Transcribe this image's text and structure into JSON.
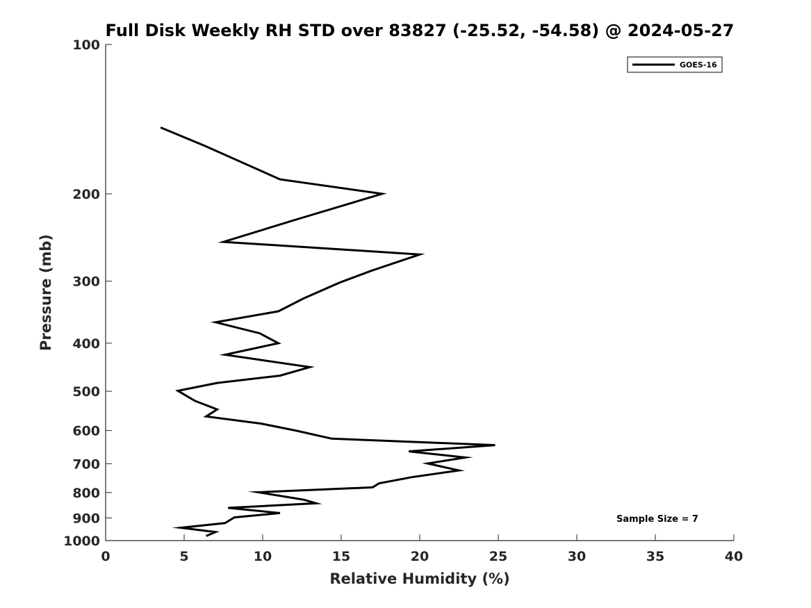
{
  "chart_data": {
    "type": "line",
    "title": "Full Disk Weekly RH STD over 83827 (-25.52, -54.58) @ 2024-05-27",
    "xlabel": "Relative Humidity (%)",
    "ylabel": "Pressure (mb)",
    "xlim": [
      0,
      40
    ],
    "ylim": [
      100,
      1000
    ],
    "yscale": "log",
    "y_reversed": true,
    "grid": false,
    "legend_position": "top-right",
    "xticks": [
      0,
      5,
      10,
      15,
      20,
      25,
      30,
      35,
      40
    ],
    "xtick_labels": [
      "0",
      "5",
      "10",
      "15",
      "20",
      "25",
      "30",
      "35",
      "40"
    ],
    "yticks": [
      100,
      200,
      300,
      400,
      500,
      600,
      700,
      800,
      900,
      1000
    ],
    "ytick_labels": [
      "100",
      "200",
      "300",
      "400",
      "500",
      "600",
      "700",
      "800",
      "900",
      "1000"
    ],
    "annotation": "Sample Size = 7",
    "series": [
      {
        "name": "GOES-16",
        "color": "#000000",
        "points": [
          [
            3.5,
            147
          ],
          [
            6.3,
            160
          ],
          [
            11.1,
            187
          ],
          [
            17.6,
            200
          ],
          [
            12.2,
            225
          ],
          [
            7.5,
            250
          ],
          [
            20.0,
            265
          ],
          [
            16.9,
            286
          ],
          [
            14.9,
            302
          ],
          [
            12.6,
            325
          ],
          [
            11.0,
            345
          ],
          [
            7.0,
            363
          ],
          [
            9.8,
            382
          ],
          [
            11.0,
            400
          ],
          [
            7.6,
            422
          ],
          [
            13.0,
            447
          ],
          [
            11.1,
            465
          ],
          [
            7.1,
            481
          ],
          [
            4.6,
            499
          ],
          [
            5.7,
            523
          ],
          [
            7.1,
            544
          ],
          [
            6.4,
            562
          ],
          [
            9.9,
            581
          ],
          [
            12.1,
            600
          ],
          [
            14.4,
            623
          ],
          [
            24.8,
            642
          ],
          [
            19.3,
            661
          ],
          [
            22.9,
            680
          ],
          [
            20.5,
            699
          ],
          [
            22.5,
            722
          ],
          [
            19.5,
            745
          ],
          [
            17.4,
            767
          ],
          [
            17.0,
            781
          ],
          [
            9.7,
            799
          ],
          [
            12.6,
            827
          ],
          [
            13.4,
            841
          ],
          [
            7.8,
            859
          ],
          [
            11.1,
            880
          ],
          [
            8.2,
            898
          ],
          [
            7.6,
            922
          ],
          [
            4.8,
            942
          ],
          [
            7.0,
            961
          ],
          [
            6.4,
            979
          ]
        ]
      }
    ]
  }
}
